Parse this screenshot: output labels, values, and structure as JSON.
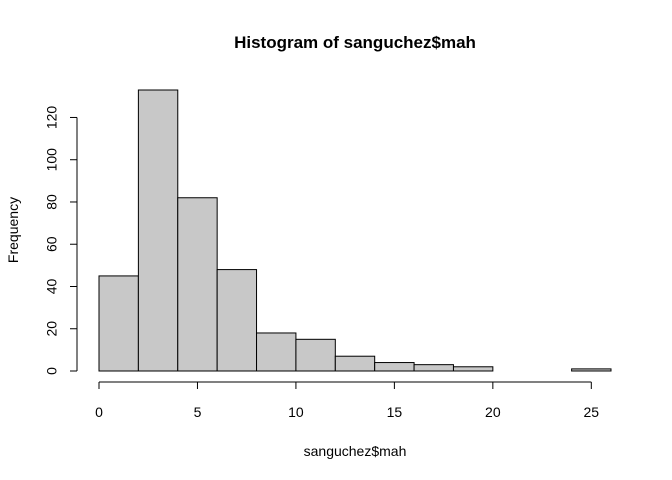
{
  "chart_data": {
    "type": "bar",
    "title": "Histogram of sanguchez$mah",
    "xlabel": "sanguchez$mah",
    "ylabel": "Frequency",
    "bin_edges": [
      0,
      2,
      4,
      6,
      8,
      10,
      12,
      14,
      16,
      18,
      20,
      22,
      24,
      26
    ],
    "values": [
      45,
      133,
      82,
      48,
      18,
      15,
      7,
      4,
      3,
      2,
      0,
      0,
      1
    ],
    "xlim": [
      0,
      26
    ],
    "ylim": [
      0,
      133
    ],
    "x_ticks": [
      0,
      5,
      10,
      15,
      20,
      25
    ],
    "y_ticks": [
      0,
      20,
      40,
      60,
      80,
      100,
      120
    ],
    "grid": false,
    "bar_color": "#c8c8c8",
    "edge_color": "#000000"
  }
}
